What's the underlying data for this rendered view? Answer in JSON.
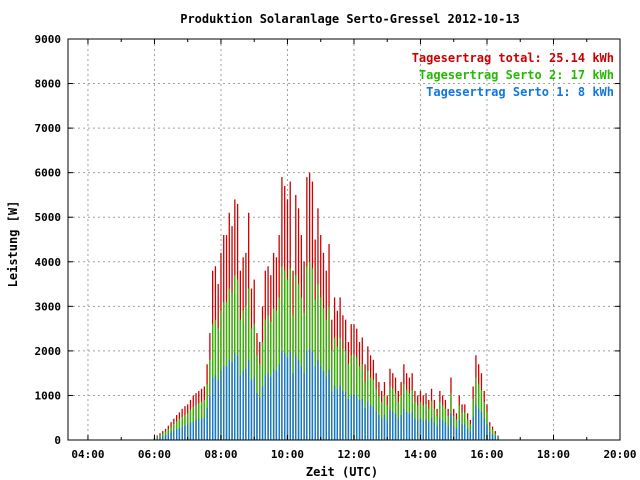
{
  "chart_data": {
    "type": "bar",
    "title": "Produktion Solaranlage Serto-Gressel 2012-10-13",
    "xlabel": "Zeit (UTC)",
    "ylabel": "Leistung [W]",
    "xlim": [
      3.4,
      20.0
    ],
    "ylim": [
      0,
      9000
    ],
    "x_ticks": [
      4,
      6,
      8,
      10,
      12,
      14,
      16,
      18,
      20
    ],
    "x_tick_labels": [
      "04:00",
      "06:00",
      "08:00",
      "10:00",
      "12:00",
      "14:00",
      "16:00",
      "18:00",
      "20:00"
    ],
    "y_ticks": [
      0,
      1000,
      2000,
      3000,
      4000,
      5000,
      6000,
      7000,
      8000,
      9000
    ],
    "y_tick_labels": [
      "0",
      "1000",
      "2000",
      "3000",
      "4000",
      "5000",
      "6000",
      "7000",
      "8000",
      "9000"
    ],
    "grid": true,
    "legend_position": "top-right",
    "legend": [
      {
        "label": "Tagesertrag total: 25.14 kWh",
        "color": "#cc0000"
      },
      {
        "label": "Tagesertrag Serto 2: 17 kWh",
        "color": "#22bb00"
      },
      {
        "label": "Tagesertrag Serto 1: 8 kWh",
        "color": "#1177dd"
      }
    ],
    "x_step_hours": 0.0833,
    "x": [
      6.0,
      6.083,
      6.167,
      6.25,
      6.333,
      6.417,
      6.5,
      6.583,
      6.667,
      6.75,
      6.833,
      6.917,
      7.0,
      7.083,
      7.167,
      7.25,
      7.333,
      7.417,
      7.5,
      7.583,
      7.667,
      7.75,
      7.833,
      7.917,
      8.0,
      8.083,
      8.167,
      8.25,
      8.333,
      8.417,
      8.5,
      8.583,
      8.667,
      8.75,
      8.833,
      8.917,
      9.0,
      9.083,
      9.167,
      9.25,
      9.333,
      9.417,
      9.5,
      9.583,
      9.667,
      9.75,
      9.833,
      9.917,
      10.0,
      10.083,
      10.167,
      10.25,
      10.333,
      10.417,
      10.5,
      10.583,
      10.667,
      10.75,
      10.833,
      10.917,
      11.0,
      11.083,
      11.167,
      11.25,
      11.333,
      11.417,
      11.5,
      11.583,
      11.667,
      11.75,
      11.833,
      11.917,
      12.0,
      12.083,
      12.167,
      12.25,
      12.333,
      12.417,
      12.5,
      12.583,
      12.667,
      12.75,
      12.833,
      12.917,
      13.0,
      13.083,
      13.167,
      13.25,
      13.333,
      13.417,
      13.5,
      13.583,
      13.667,
      13.75,
      13.833,
      13.917,
      14.0,
      14.083,
      14.167,
      14.25,
      14.333,
      14.417,
      14.5,
      14.583,
      14.667,
      14.75,
      14.833,
      14.917,
      15.0,
      15.083,
      15.167,
      15.25,
      15.333,
      15.417,
      15.5,
      15.583,
      15.667,
      15.75,
      15.833,
      15.917,
      16.0,
      16.083,
      16.167,
      16.25,
      16.333
    ],
    "series": [
      {
        "name": "Tagesertrag total: 25.14 kWh",
        "color": "#cc0000",
        "values": [
          50,
          100,
          150,
          200,
          250,
          320,
          400,
          480,
          560,
          620,
          700,
          760,
          800,
          900,
          1000,
          1050,
          1100,
          1150,
          1200,
          1700,
          2400,
          3800,
          3900,
          3500,
          4200,
          4600,
          4600,
          5100,
          4800,
          5400,
          5300,
          3800,
          4100,
          4200,
          5100,
          3400,
          3600,
          2400,
          2200,
          3000,
          3800,
          3900,
          3700,
          4200,
          4100,
          4600,
          5900,
          5700,
          5400,
          5800,
          3800,
          5500,
          5200,
          4600,
          4000,
          5900,
          6000,
          5800,
          4500,
          5200,
          4600,
          4200,
          3800,
          4400,
          2700,
          3200,
          2900,
          3200,
          2800,
          2700,
          2200,
          2600,
          2600,
          2500,
          2200,
          2300,
          1700,
          2100,
          1900,
          1800,
          1500,
          1300,
          1100,
          1300,
          1000,
          1600,
          1500,
          1400,
          1100,
          1300,
          1700,
          1500,
          1400,
          1500,
          1100,
          1000,
          1100,
          1000,
          1050,
          900,
          1150,
          900,
          700,
          1100,
          1000,
          900,
          700,
          1400,
          700,
          600,
          1000,
          800,
          800,
          600,
          450,
          1200,
          1900,
          1700,
          1500,
          1100,
          800,
          400,
          300,
          200,
          100
        ]
      },
      {
        "name": "Tagesertrag Serto 2: 17 kWh",
        "color": "#22bb00",
        "values": [
          30,
          70,
          110,
          150,
          190,
          240,
          300,
          360,
          420,
          470,
          520,
          560,
          600,
          680,
          740,
          780,
          820,
          860,
          900,
          1250,
          1800,
          2600,
          2700,
          2500,
          2900,
          3100,
          3100,
          3400,
          3300,
          3700,
          3600,
          2700,
          2900,
          3000,
          3400,
          2500,
          2600,
          1900,
          1700,
          2200,
          2700,
          2800,
          2650,
          2950,
          2900,
          3200,
          3900,
          3800,
          3600,
          3850,
          2800,
          3700,
          3500,
          3200,
          2850,
          3900,
          4000,
          3850,
          3150,
          3500,
          3200,
          2950,
          2700,
          3000,
          2000,
          2300,
          2100,
          2300,
          2050,
          2000,
          1700,
          1900,
          1900,
          1850,
          1650,
          1700,
          1300,
          1550,
          1400,
          1350,
          1150,
          1000,
          850,
          1000,
          780,
          1200,
          1150,
          1050,
          850,
          1000,
          1250,
          1120,
          1050,
          1120,
          850,
          780,
          850,
          780,
          800,
          700,
          880,
          700,
          540,
          850,
          780,
          700,
          540,
          1050,
          540,
          460,
          780,
          620,
          620,
          460,
          350,
          920,
          1400,
          1250,
          1120,
          850,
          620,
          310,
          230,
          150,
          80
        ]
      },
      {
        "name": "Tagesertrag Serto 1: 8 kWh",
        "color": "#1177dd",
        "values": [
          20,
          40,
          60,
          90,
          110,
          140,
          170,
          210,
          240,
          270,
          300,
          320,
          350,
          390,
          420,
          450,
          470,
          490,
          500,
          720,
          1000,
          1400,
          1450,
          1350,
          1550,
          1650,
          1650,
          1800,
          1750,
          1950,
          1900,
          1450,
          1550,
          1600,
          1800,
          1350,
          1400,
          1050,
          950,
          1200,
          1450,
          1500,
          1420,
          1580,
          1550,
          1700,
          2000,
          1950,
          1850,
          1980,
          1500,
          1900,
          1800,
          1650,
          1500,
          2000,
          2050,
          1980,
          1650,
          1800,
          1650,
          1550,
          1420,
          1580,
          1080,
          1220,
          1130,
          1220,
          1100,
          1080,
          920,
          1020,
          1020,
          1000,
          900,
          920,
          720,
          850,
          780,
          750,
          640,
          560,
          480,
          560,
          440,
          670,
          640,
          590,
          480,
          560,
          700,
          630,
          590,
          630,
          480,
          440,
          480,
          440,
          460,
          400,
          500,
          400,
          310,
          480,
          440,
          400,
          310,
          600,
          310,
          260,
          440,
          350,
          350,
          260,
          200,
          520,
          780,
          700,
          630,
          480,
          350,
          180,
          130,
          90,
          50
        ]
      }
    ]
  }
}
